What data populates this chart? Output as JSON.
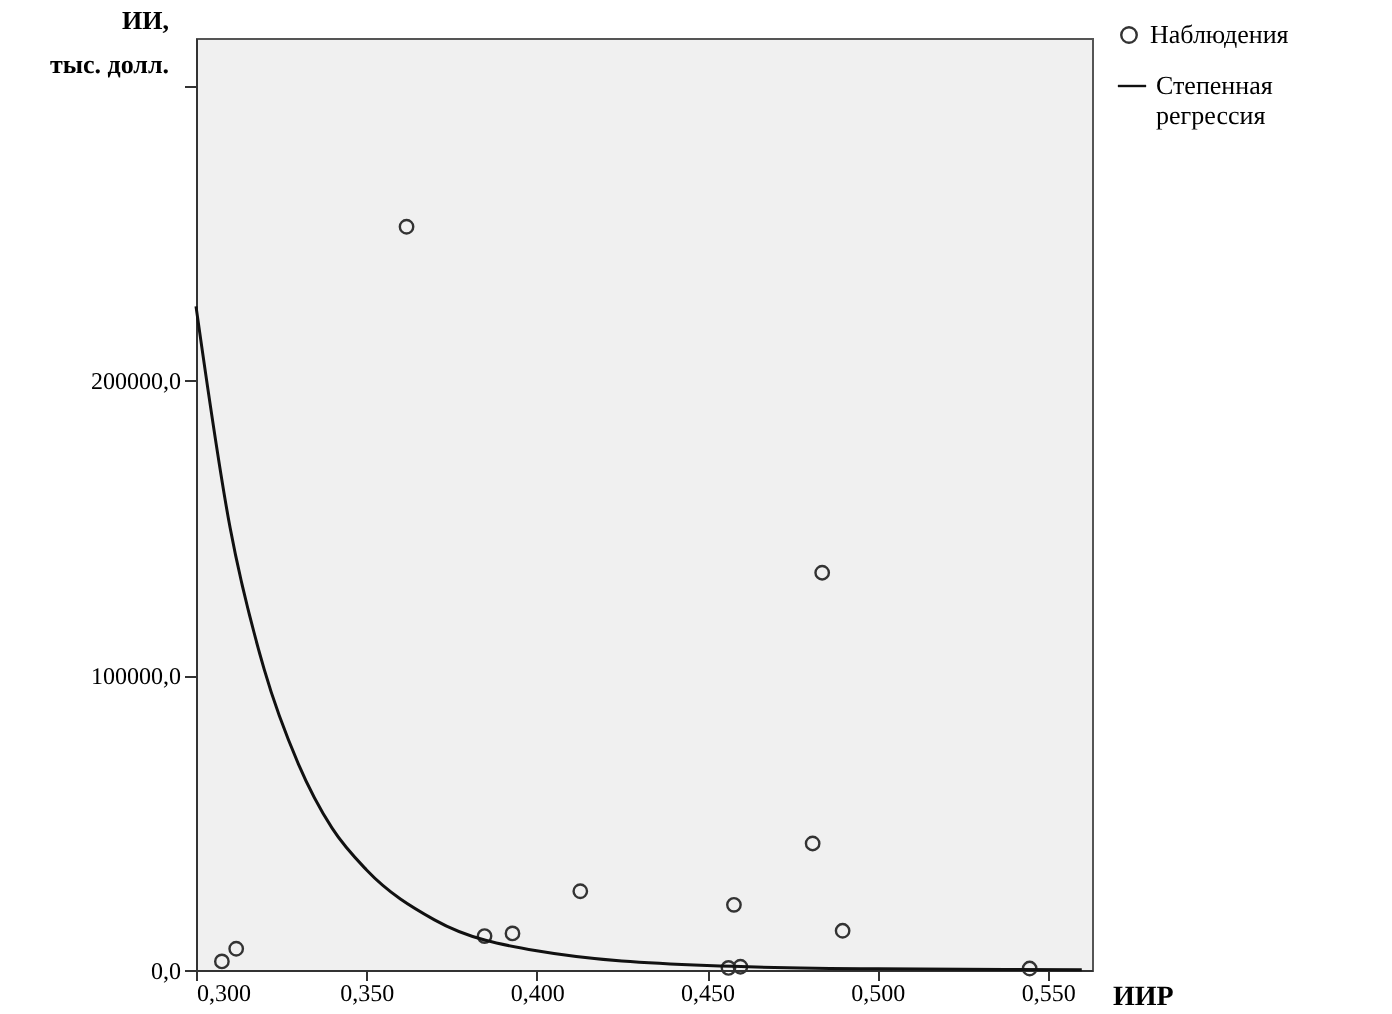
{
  "chart_data": {
    "type": "scatter",
    "xlabel": "ИИР",
    "ylabel": "ИИ, тыс. долл.",
    "legend": "top right",
    "xlim": [
      0.3,
      0.563
    ],
    "ylim": [
      0,
      316000
    ],
    "xticks": [
      {
        "value": 0.3,
        "label": "0,300"
      },
      {
        "value": 0.35,
        "label": "0,350"
      },
      {
        "value": 0.4,
        "label": "0,400"
      },
      {
        "value": 0.45,
        "label": "0,450"
      },
      {
        "value": 0.5,
        "label": "0,500"
      },
      {
        "value": 0.55,
        "label": "0,550"
      }
    ],
    "yticks": [
      {
        "value": 0,
        "label": "0,0"
      },
      {
        "value": 100000,
        "label": "100000,0"
      },
      {
        "value": 200000,
        "label": "200000,0"
      },
      {
        "value": 300000,
        "label": null
      }
    ],
    "series": [
      {
        "name": "Наблюдения",
        "marker": "circle",
        "color": "#333333",
        "x": [
          0.3076,
          0.3118,
          0.3618,
          0.3847,
          0.3929,
          0.4128,
          0.4579,
          0.4563,
          0.4598,
          0.481,
          0.4838,
          0.4898,
          0.5447
        ],
        "values": [
          2900,
          7200,
          252000,
          11500,
          12400,
          26700,
          22100,
          700,
          1100,
          42900,
          134700,
          13300,
          500
        ]
      },
      {
        "name": "Степенная регрессия",
        "type": "line",
        "color": "#111111",
        "x": [
          0.3,
          0.31,
          0.32,
          0.33,
          0.34,
          0.35,
          0.37,
          0.4,
          0.45,
          0.5,
          0.56
        ],
        "values": [
          225000,
          150000,
          102000,
          70000,
          48000,
          34000,
          17000,
          6500,
          1500,
          400,
          100
        ]
      }
    ]
  }
}
